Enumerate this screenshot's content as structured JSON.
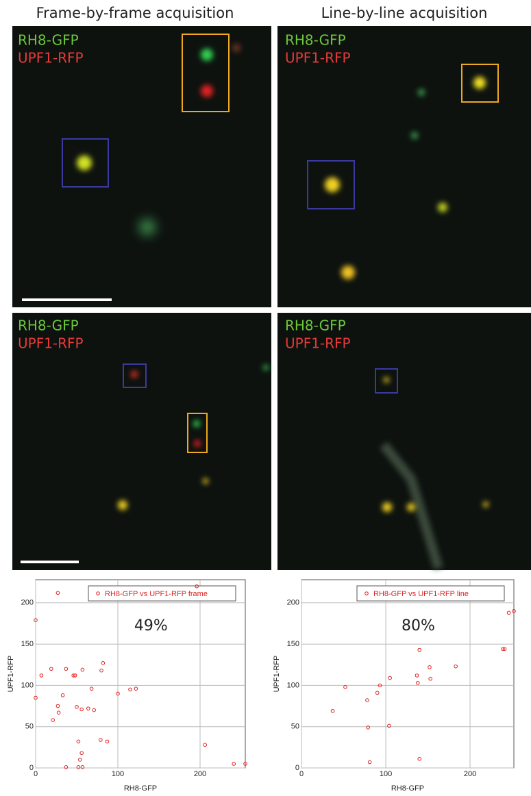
{
  "panels": {
    "columns": [
      "Frame-by-frame acquisition",
      "Line-by-line acquisition"
    ],
    "channel_labels": [
      "RH8-GFP",
      "UPF1-RFP"
    ]
  },
  "chart_data": [
    {
      "type": "scatter",
      "x_label": "RH8-GFP",
      "y_label": "UPF1-RFP",
      "annotation": "49%",
      "xlim": [
        0,
        255
      ],
      "ylim": [
        0,
        228
      ],
      "xticks": [
        0,
        100,
        200
      ],
      "yticks": [
        0,
        50,
        100,
        150,
        200
      ],
      "grid": true,
      "legend": "upper right",
      "series": [
        {
          "name": "RH8-GFP vs UPF1-RFP frame",
          "color": "#e02020",
          "x": [
            0,
            27,
            196,
            7,
            19,
            37,
            46,
            48,
            57,
            68,
            80,
            82,
            0,
            27,
            28,
            21,
            33,
            50,
            56,
            64,
            71,
            100,
            115,
            122,
            79,
            87,
            52,
            56,
            54,
            37,
            52,
            57,
            206,
            241,
            255
          ],
          "values": [
            179,
            212,
            220,
            112,
            120,
            120,
            112,
            112,
            119,
            96,
            118,
            127,
            85,
            75,
            67,
            58,
            88,
            74,
            71,
            72,
            70,
            90,
            95,
            96,
            34,
            32,
            32,
            18,
            10,
            1,
            1,
            1,
            28,
            5,
            5
          ]
        }
      ]
    },
    {
      "type": "scatter",
      "x_label": "RH8-GFP",
      "y_label": "UPF1-RFP",
      "annotation": "80%",
      "xlim": [
        0,
        252
      ],
      "ylim": [
        0,
        228
      ],
      "xticks": [
        0,
        100,
        200
      ],
      "yticks": [
        0,
        50,
        100,
        150,
        200
      ],
      "grid": true,
      "legend": "upper right",
      "series": [
        {
          "name": "RH8-GFP vs UPF1-RFP line",
          "color": "#e02020",
          "x": [
            37,
            52,
            78,
            90,
            93,
            105,
            79,
            104,
            81,
            137,
            138,
            140,
            152,
            153,
            183,
            140,
            239,
            241,
            246,
            252
          ],
          "values": [
            69,
            98,
            82,
            91,
            100,
            109,
            49,
            51,
            7,
            112,
            103,
            143,
            122,
            108,
            123,
            11,
            144,
            144,
            188,
            190
          ]
        }
      ]
    }
  ]
}
